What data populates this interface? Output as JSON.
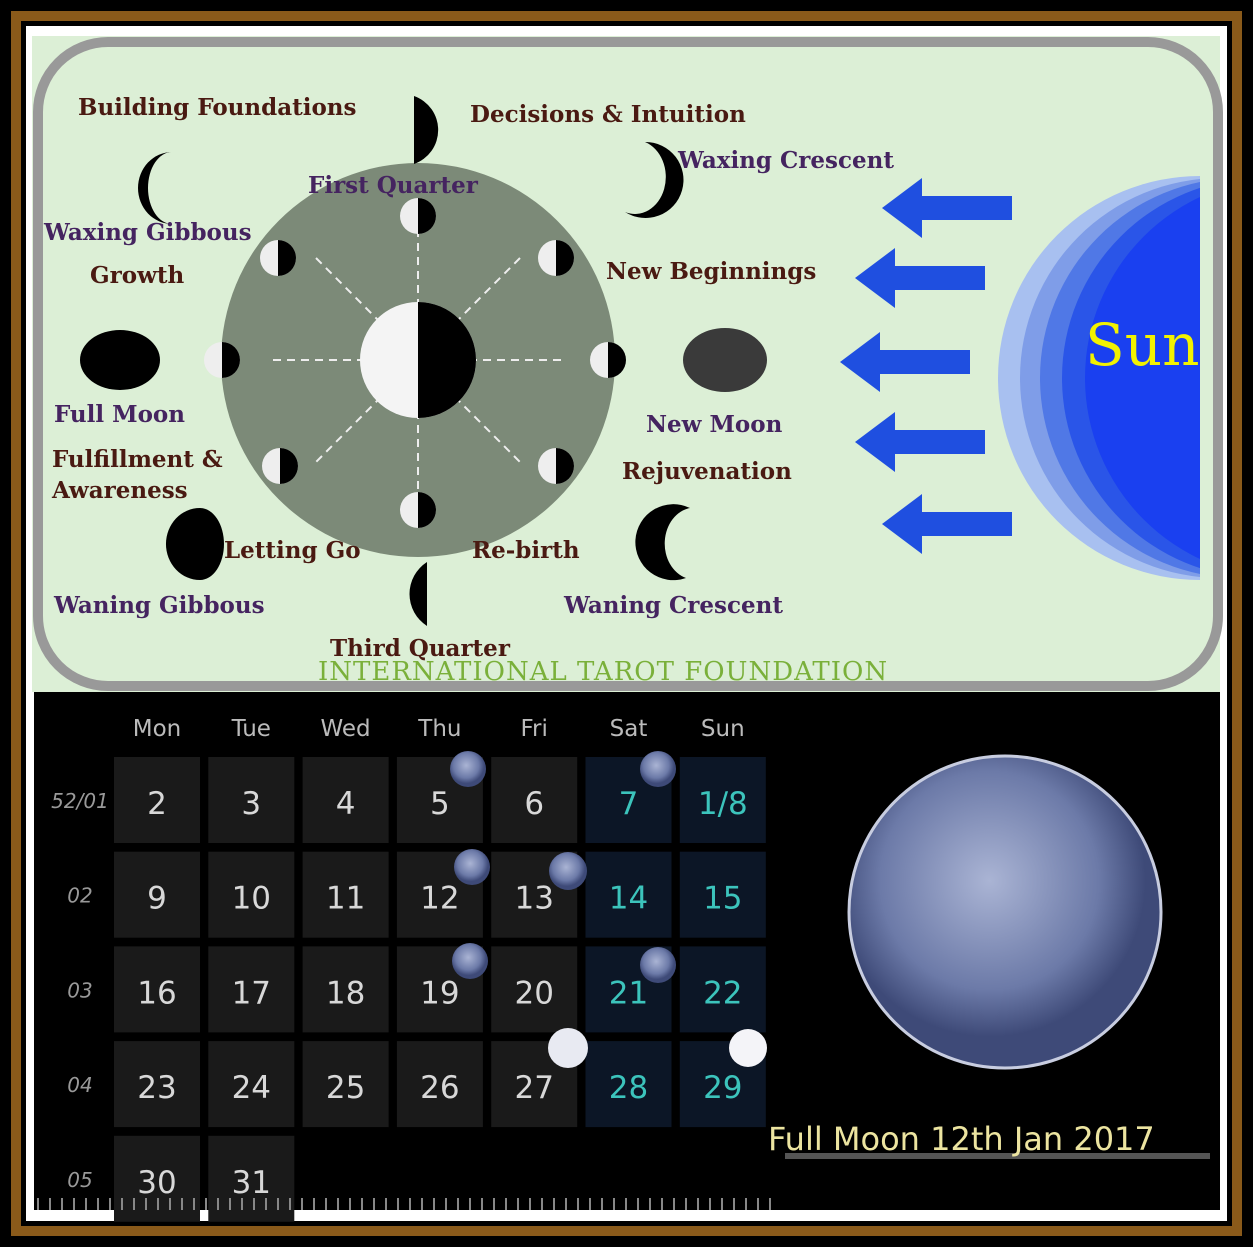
{
  "diagram": {
    "labels": {
      "building_foundations": "Building Foundations",
      "decisions_intuition": "Decisions & Intuition",
      "waxing_crescent": "Waxing Crescent",
      "first_quarter": "First Quarter",
      "waxing_gibbous": "Waxing Gibbous",
      "growth": "Growth",
      "new_beginnings": "New Beginnings",
      "full_moon": "Full Moon",
      "new_moon": "New Moon",
      "fulfillment": "Fulfillment  &",
      "awareness": "Awareness",
      "rejuvenation": "Rejuvenation",
      "letting_go": "Letting Go",
      "rebirth": "Re-birth",
      "waning_gibbous": "Waning Gibbous",
      "waning_crescent": "Waning Crescent",
      "third_quarter": "Third Quarter"
    },
    "sun": "Sun",
    "footer": "International Tarot Foundation"
  },
  "calendar": {
    "weekdays": [
      "Mon",
      "Tue",
      "Wed",
      "Thu",
      "Fri",
      "Sat",
      "Sun"
    ],
    "weeks": [
      {
        "week": "52/01",
        "days": [
          "2",
          "3",
          "4",
          "5",
          "6",
          "7",
          "1/8"
        ]
      },
      {
        "week": "02",
        "days": [
          "9",
          "10",
          "11",
          "12",
          "13",
          "14",
          "15"
        ]
      },
      {
        "week": "03",
        "days": [
          "16",
          "17",
          "18",
          "19",
          "20",
          "21",
          "22"
        ]
      },
      {
        "week": "04",
        "days": [
          "23",
          "24",
          "25",
          "26",
          "27",
          "28",
          "29"
        ]
      },
      {
        "week": "05",
        "days": [
          "30",
          "31"
        ]
      }
    ],
    "caption": "Full Moon 12th Jan 2017"
  }
}
